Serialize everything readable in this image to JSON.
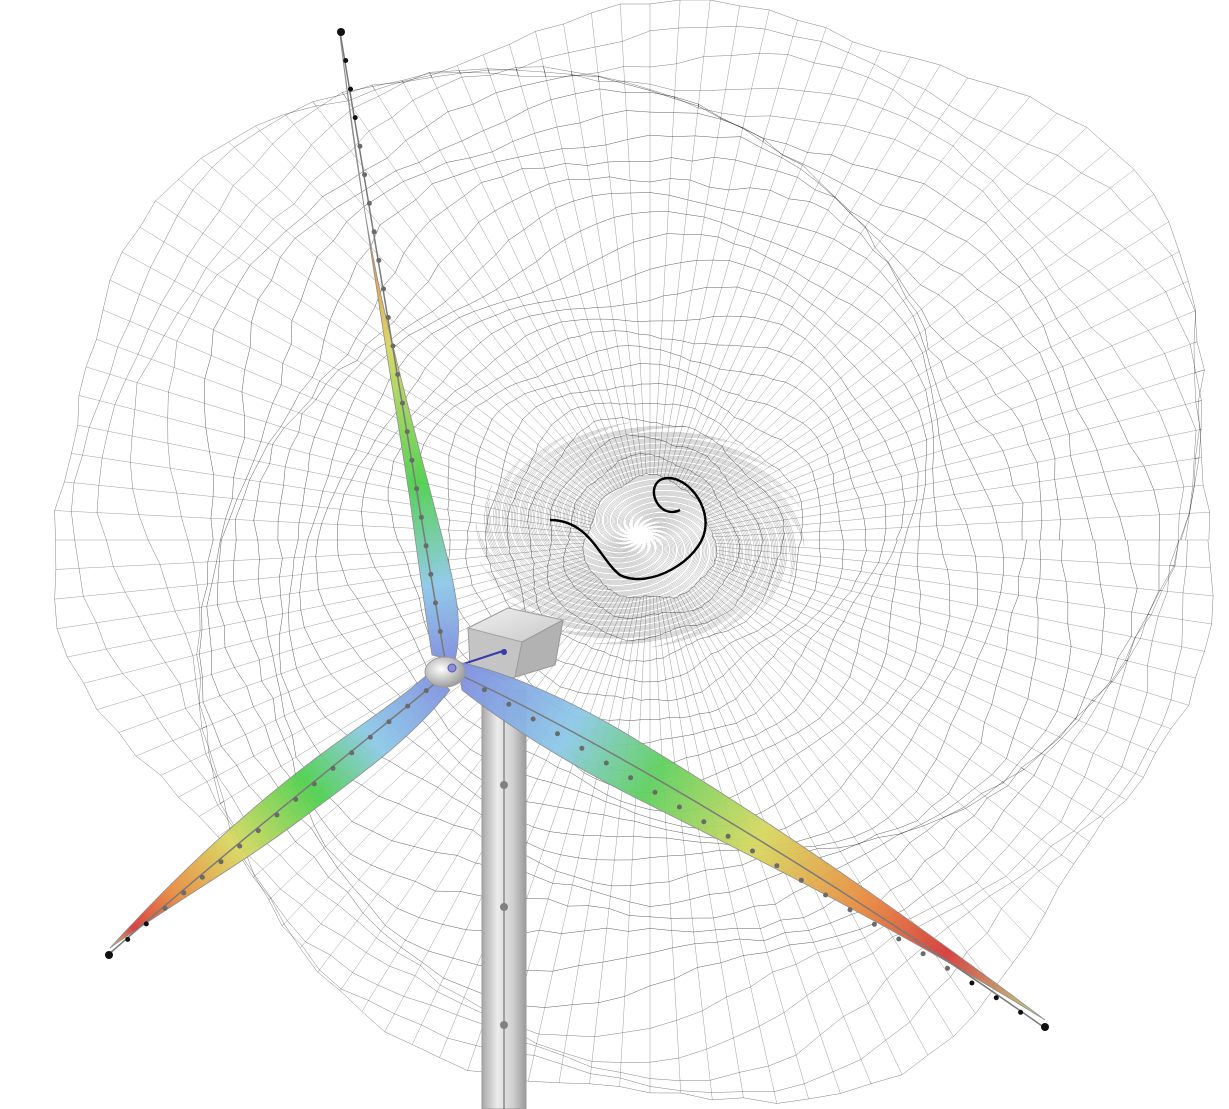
{
  "scene": {
    "kind": "wind-turbine-wake-visualization",
    "background": "#ffffff",
    "blade_count": 3,
    "blade_gradient": [
      "#7f8fe0",
      "#8fd0e0",
      "#5fd05f",
      "#d7d870",
      "#e8a070",
      "#d94040",
      "#c7e080"
    ],
    "tower_color": "#c8c8c8",
    "wake_line_color": "#000000",
    "node_color": "#777777"
  }
}
